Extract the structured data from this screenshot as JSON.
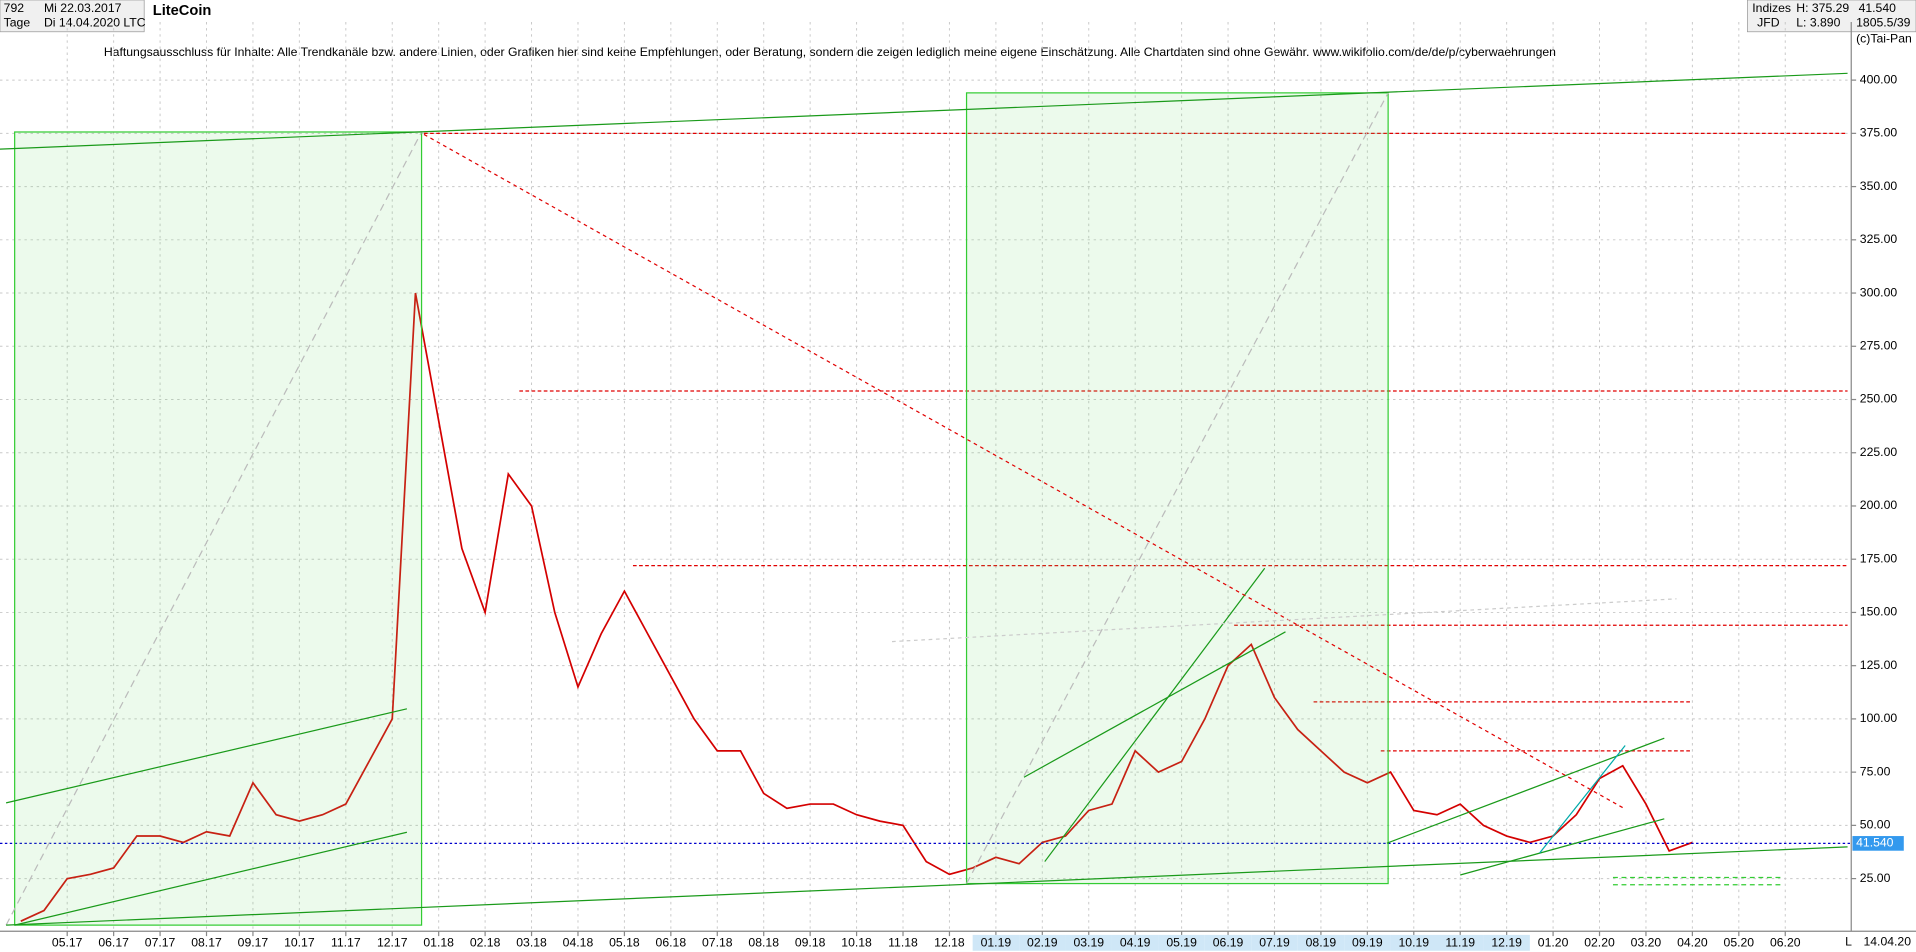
{
  "chart_data": {
    "type": "line",
    "title": "LiteCoin",
    "symbol": "LTC",
    "info": {
      "count": "792",
      "start": "Mi 22.03.2017",
      "interval": "Tage",
      "end": "Di 14.04.2020",
      "group": "Indizes",
      "broker": "JFD",
      "high": "H: 375.29",
      "low": "L: 3.890",
      "last": "41.540",
      "stats": "1805.5/39",
      "copyright": "(c)Tai-Pan",
      "last_date": "14.04.20",
      "axis_flag": "L"
    },
    "annotation": "Haftungsausschluss für Inhalte: Alle Trendkanäle bzw. andere Linien, oder Grafiken hier sind keine Empfehlungen, oder Beratung, sondern die zeigen lediglich meine eigene Einschätzung. Alle Chartdaten sind ohne Gewähr.  www.wikifolio.com/de/de/p/cyberwaehrungen",
    "categories": [
      null,
      null,
      "05.17",
      null,
      "06.17",
      null,
      "07.17",
      null,
      "08.17",
      null,
      "09.17",
      null,
      "10.17",
      null,
      "11.17",
      null,
      "12.17",
      null,
      "01.18",
      null,
      "02.18",
      null,
      "03.18",
      null,
      "04.18",
      null,
      "05.18",
      null,
      "06.18",
      null,
      "07.18",
      null,
      "08.18",
      null,
      "09.18",
      null,
      "10.18",
      null,
      "11.18",
      null,
      "12.18",
      null,
      "01.19",
      null,
      "02.19",
      null,
      "03.19",
      null,
      "04.19",
      null,
      "05.19",
      null,
      "06.19",
      null,
      "07.19",
      null,
      "08.19",
      null,
      "09.19",
      null,
      "10.19",
      null,
      "11.19",
      null,
      "12.19",
      null,
      "01.20",
      null,
      "02.20",
      null,
      "03.20",
      null,
      "04.20",
      null,
      "05.20",
      null,
      "06.20"
    ],
    "series": [
      {
        "name": "LTC",
        "color": "#d40000",
        "values": [
          5,
          10,
          25,
          27,
          30,
          45,
          45,
          42,
          47,
          45,
          70,
          55,
          52,
          55,
          60,
          80,
          100,
          300,
          240,
          180,
          150,
          215,
          200,
          150,
          115,
          140,
          160,
          140,
          120,
          100,
          85,
          85,
          65,
          58,
          60,
          60,
          55,
          52,
          50,
          33,
          27,
          30,
          35,
          32,
          42,
          45,
          57,
          60,
          85,
          75,
          80,
          100,
          125,
          135,
          110,
          95,
          85,
          75,
          70,
          75,
          57,
          55,
          60,
          50,
          45,
          42,
          45,
          55,
          72,
          78,
          60,
          38,
          42,
          null,
          null,
          null,
          null
        ]
      }
    ],
    "last_value": {
      "value": 41.54,
      "label": "41.540"
    },
    "levels": [
      375,
      254,
      172,
      144,
      108,
      85
    ],
    "ylim": [
      0,
      425
    ],
    "yticks": [
      {
        "value": 25,
        "label": "25.00"
      },
      {
        "value": 50,
        "label": "50.00"
      },
      {
        "value": 75,
        "label": "75.00"
      },
      {
        "value": 100,
        "label": "100.00"
      },
      {
        "value": 125,
        "label": "125.00"
      },
      {
        "value": 150,
        "label": "150.00"
      },
      {
        "value": 175,
        "label": "175.00"
      },
      {
        "value": 200,
        "label": "200.00"
      },
      {
        "value": 225,
        "label": "225.00"
      },
      {
        "value": 250,
        "label": "250.00"
      },
      {
        "value": 275,
        "label": "275.00"
      },
      {
        "value": 300,
        "label": "300.00"
      },
      {
        "value": 325,
        "label": "325.00"
      },
      {
        "value": 350,
        "label": "350.00"
      },
      {
        "value": 375,
        "label": "375.00"
      },
      {
        "value": 400,
        "label": "400.00"
      }
    ],
    "grid": true
  }
}
